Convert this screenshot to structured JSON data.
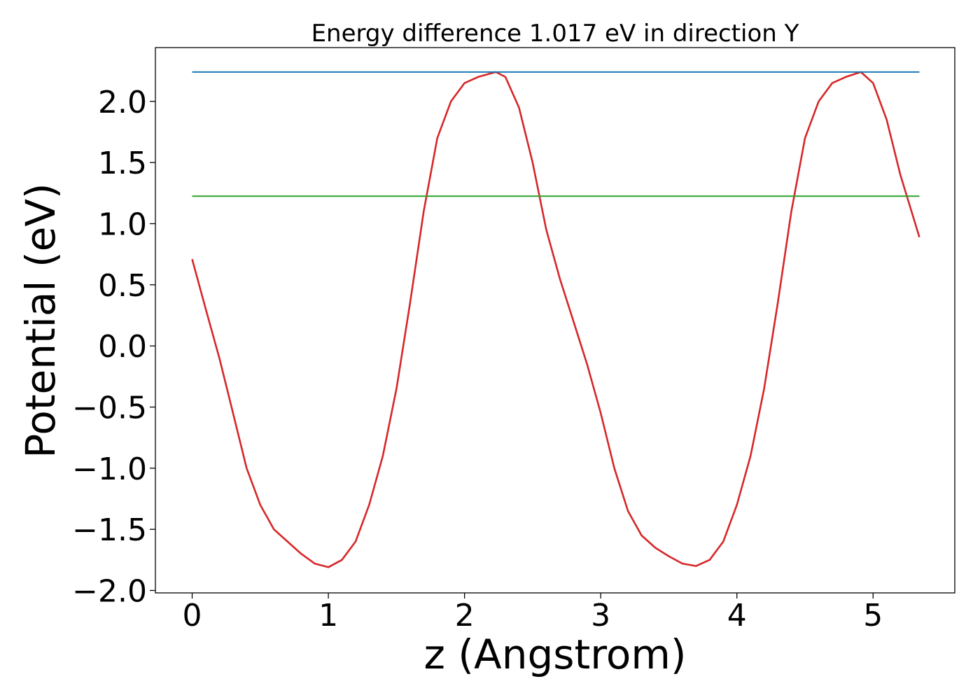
{
  "chart_data": {
    "type": "line",
    "title": "Energy difference 1.017 eV in direction Y",
    "xlabel": "z (Angstrom)",
    "ylabel": "Potential (eV)",
    "xlim": [
      -0.27,
      5.6
    ],
    "ylim": [
      -2.02,
      2.44
    ],
    "xticks": [
      0,
      1,
      2,
      3,
      4,
      5
    ],
    "xtick_labels": [
      "0",
      "1",
      "2",
      "3",
      "4",
      "5"
    ],
    "yticks": [
      -2.0,
      -1.5,
      -1.0,
      -0.5,
      0.0,
      0.5,
      1.0,
      1.5,
      2.0
    ],
    "ytick_labels": [
      "−2.0",
      "−1.5",
      "−1.0",
      "−0.5",
      "0.0",
      "0.5",
      "1.0",
      "1.5",
      "2.0"
    ],
    "grid": false,
    "series": [
      {
        "color": "#d62728",
        "x": [
          0.0,
          0.1,
          0.2,
          0.3,
          0.4,
          0.5,
          0.6,
          0.7,
          0.8,
          0.9,
          1.0,
          1.1,
          1.2,
          1.3,
          1.4,
          1.5,
          1.6,
          1.7,
          1.8,
          1.9,
          2.0,
          2.1,
          2.23,
          2.3,
          2.4,
          2.5,
          2.6,
          2.7,
          2.8,
          2.9,
          3.0,
          3.1,
          3.2,
          3.3,
          3.4,
          3.5,
          3.6,
          3.7,
          3.8,
          3.9,
          4.0,
          4.1,
          4.2,
          4.3,
          4.4,
          4.5,
          4.6,
          4.7,
          4.8,
          4.91,
          5.0,
          5.1,
          5.2,
          5.34
        ],
        "y": [
          0.71,
          0.3,
          -0.1,
          -0.55,
          -1.0,
          -1.3,
          -1.5,
          -1.6,
          -1.7,
          -1.78,
          -1.81,
          -1.75,
          -1.6,
          -1.3,
          -0.9,
          -0.35,
          0.35,
          1.1,
          1.7,
          2.0,
          2.15,
          2.2,
          2.24,
          2.2,
          1.95,
          1.5,
          0.95,
          0.55,
          0.2,
          -0.15,
          -0.55,
          -1.0,
          -1.35,
          -1.55,
          -1.65,
          -1.72,
          -1.78,
          -1.8,
          -1.75,
          -1.6,
          -1.3,
          -0.9,
          -0.35,
          0.35,
          1.1,
          1.7,
          2.0,
          2.15,
          2.2,
          2.24,
          2.15,
          1.85,
          1.4,
          0.89
        ]
      },
      {
        "color": "#1f77b4",
        "x": [
          0.0,
          5.34
        ],
        "y": [
          2.24,
          2.24
        ]
      },
      {
        "color": "#2ca02c",
        "x": [
          0.0,
          5.34
        ],
        "y": [
          1.225,
          1.225
        ]
      }
    ]
  }
}
